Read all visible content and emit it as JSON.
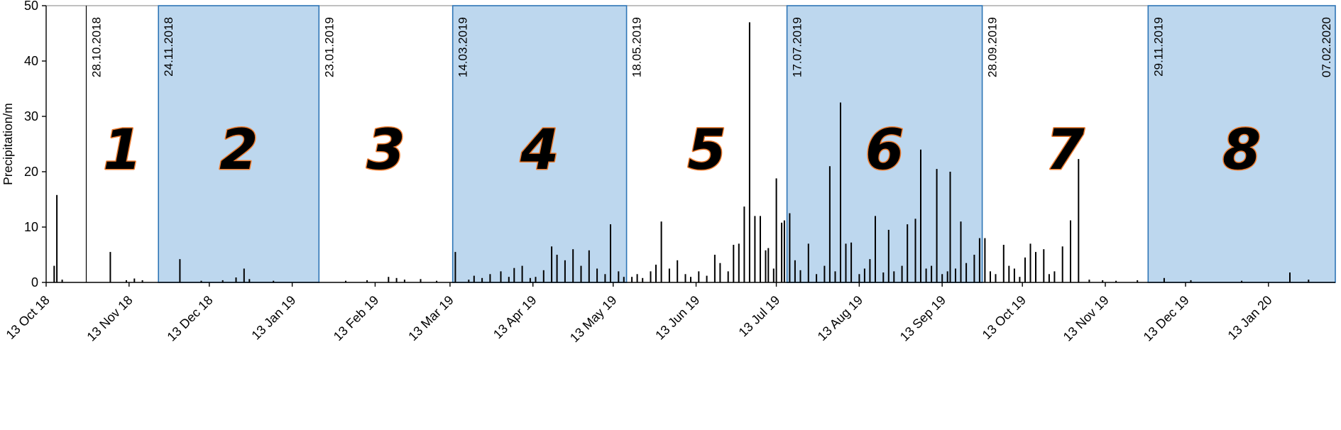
{
  "chart_data": {
    "type": "bar",
    "title": "",
    "xlabel": "",
    "ylabel": "Precipitation/m",
    "ylim": [
      0,
      50
    ],
    "yticks": [
      0,
      10,
      20,
      30,
      40,
      50
    ],
    "x_axis_note": "x values are days since 13 Oct 2018; axis spans 13 Oct 2018 to 07 Feb 2020",
    "axis_max_day": 482,
    "grid": "off",
    "legend": "none",
    "xticks": [
      {
        "label": "13 Oct 18",
        "day": 0
      },
      {
        "label": "13 Nov 18",
        "day": 31
      },
      {
        "label": "13 Dec 18",
        "day": 61
      },
      {
        "label": "13 Jan 19",
        "day": 92
      },
      {
        "label": "13 Feb 19",
        "day": 123
      },
      {
        "label": "13 Mar 19",
        "day": 151
      },
      {
        "label": "13 Apr 19",
        "day": 182
      },
      {
        "label": "13 May 19",
        "day": 212
      },
      {
        "label": "13 Jun 19",
        "day": 243
      },
      {
        "label": "13 Jul 19",
        "day": 273
      },
      {
        "label": "13 Aug 19",
        "day": 304
      },
      {
        "label": "13 Sep 19",
        "day": 335
      },
      {
        "label": "13 Oct 19",
        "day": 365
      },
      {
        "label": "13 Nov 19",
        "day": 396
      },
      {
        "label": "13 Dec 19",
        "day": 426
      },
      {
        "label": "13 Jan 20",
        "day": 457
      }
    ],
    "boundaries": [
      {
        "label": "28.10.2018",
        "day": 15
      },
      {
        "label": "24.11.2018",
        "day": 42
      },
      {
        "label": "23.01.2019",
        "day": 102
      },
      {
        "label": "14.03.2019",
        "day": 152
      },
      {
        "label": "18.05.2019",
        "day": 217
      },
      {
        "label": "17.07.2019",
        "day": 277
      },
      {
        "label": "28.09.2019",
        "day": 350
      },
      {
        "label": "29.11.2019",
        "day": 412
      },
      {
        "label": "07.02.2020",
        "day": 482
      }
    ],
    "periods": [
      {
        "number": "1",
        "start_day": 15,
        "end_day": 42,
        "shaded": false
      },
      {
        "number": "2",
        "start_day": 42,
        "end_day": 102,
        "shaded": true
      },
      {
        "number": "3",
        "start_day": 102,
        "end_day": 152,
        "shaded": false
      },
      {
        "number": "4",
        "start_day": 152,
        "end_day": 217,
        "shaded": true
      },
      {
        "number": "5",
        "start_day": 217,
        "end_day": 277,
        "shaded": false
      },
      {
        "number": "6",
        "start_day": 277,
        "end_day": 350,
        "shaded": true
      },
      {
        "number": "7",
        "start_day": 350,
        "end_day": 412,
        "shaded": false
      },
      {
        "number": "8",
        "start_day": 412,
        "end_day": 482,
        "shaded": true
      }
    ],
    "bars": [
      [
        3,
        3.0
      ],
      [
        4,
        15.8
      ],
      [
        6,
        0.5
      ],
      [
        24,
        5.5
      ],
      [
        30,
        0.4
      ],
      [
        33,
        0.7
      ],
      [
        36,
        0.4
      ],
      [
        50,
        4.2
      ],
      [
        58,
        0.3
      ],
      [
        66,
        0.4
      ],
      [
        71,
        0.9
      ],
      [
        74,
        2.5
      ],
      [
        76,
        0.6
      ],
      [
        85,
        0.3
      ],
      [
        112,
        0.3
      ],
      [
        120,
        0.4
      ],
      [
        128,
        1.0
      ],
      [
        131,
        0.8
      ],
      [
        134,
        0.5
      ],
      [
        140,
        0.6
      ],
      [
        146,
        0.3
      ],
      [
        153,
        5.5
      ],
      [
        158,
        0.5
      ],
      [
        160,
        1.2
      ],
      [
        163,
        0.8
      ],
      [
        166,
        1.5
      ],
      [
        170,
        2.0
      ],
      [
        173,
        1.0
      ],
      [
        175,
        2.6
      ],
      [
        178,
        3.0
      ],
      [
        181,
        0.8
      ],
      [
        183,
        1.0
      ],
      [
        186,
        2.2
      ],
      [
        189,
        6.5
      ],
      [
        191,
        5.0
      ],
      [
        194,
        4.0
      ],
      [
        197,
        6.0
      ],
      [
        200,
        3.0
      ],
      [
        203,
        5.8
      ],
      [
        206,
        2.5
      ],
      [
        209,
        1.5
      ],
      [
        211,
        10.5
      ],
      [
        214,
        2.0
      ],
      [
        216,
        1.0
      ],
      [
        219,
        1.0
      ],
      [
        221,
        1.5
      ],
      [
        223,
        0.8
      ],
      [
        226,
        2.0
      ],
      [
        228,
        3.2
      ],
      [
        230,
        11.0
      ],
      [
        233,
        2.5
      ],
      [
        236,
        4.0
      ],
      [
        239,
        1.5
      ],
      [
        241,
        1.0
      ],
      [
        244,
        2.0
      ],
      [
        247,
        1.2
      ],
      [
        250,
        5.0
      ],
      [
        252,
        3.5
      ],
      [
        255,
        2.0
      ],
      [
        257,
        6.8
      ],
      [
        259,
        7.0
      ],
      [
        261,
        13.7
      ],
      [
        263,
        47.0
      ],
      [
        265,
        12.0
      ],
      [
        267,
        12.0
      ],
      [
        269,
        5.8
      ],
      [
        270,
        6.2
      ],
      [
        272,
        2.5
      ],
      [
        273,
        18.8
      ],
      [
        275,
        10.8
      ],
      [
        276,
        11.2
      ],
      [
        278,
        12.5
      ],
      [
        280,
        4.0
      ],
      [
        282,
        2.2
      ],
      [
        285,
        7.0
      ],
      [
        288,
        1.5
      ],
      [
        291,
        3.0
      ],
      [
        293,
        21.0
      ],
      [
        295,
        2.0
      ],
      [
        297,
        32.5
      ],
      [
        299,
        7.0
      ],
      [
        301,
        7.2
      ],
      [
        304,
        1.5
      ],
      [
        306,
        2.5
      ],
      [
        308,
        4.2
      ],
      [
        310,
        12.0
      ],
      [
        313,
        1.8
      ],
      [
        315,
        9.5
      ],
      [
        317,
        2.0
      ],
      [
        320,
        3.0
      ],
      [
        322,
        10.5
      ],
      [
        325,
        11.5
      ],
      [
        327,
        24.0
      ],
      [
        329,
        2.5
      ],
      [
        331,
        3.0
      ],
      [
        333,
        20.5
      ],
      [
        335,
        1.5
      ],
      [
        337,
        2.0
      ],
      [
        338,
        20.0
      ],
      [
        340,
        2.5
      ],
      [
        342,
        11.0
      ],
      [
        344,
        3.5
      ],
      [
        347,
        5.0
      ],
      [
        349,
        8.0
      ],
      [
        351,
        8.0
      ],
      [
        353,
        2.0
      ],
      [
        355,
        1.5
      ],
      [
        358,
        6.8
      ],
      [
        360,
        3.0
      ],
      [
        362,
        2.5
      ],
      [
        364,
        1.0
      ],
      [
        366,
        4.5
      ],
      [
        368,
        7.0
      ],
      [
        370,
        5.5
      ],
      [
        373,
        6.0
      ],
      [
        375,
        1.5
      ],
      [
        377,
        2.0
      ],
      [
        380,
        6.5
      ],
      [
        383,
        11.2
      ],
      [
        386,
        22.3
      ],
      [
        390,
        0.5
      ],
      [
        395,
        0.4
      ],
      [
        400,
        0.3
      ],
      [
        408,
        0.4
      ],
      [
        418,
        0.8
      ],
      [
        428,
        0.4
      ],
      [
        447,
        0.3
      ],
      [
        465,
        1.8
      ],
      [
        472,
        0.5
      ]
    ],
    "colors": {
      "bar": "#000000",
      "shaded_fill": "#BDD7EE",
      "shaded_border": "#2E75B6",
      "boundary_line": "#000000",
      "axis": "#000000",
      "plot_border": "#808080",
      "period_number_fill": "#F9BE8F",
      "period_number_stroke": "#ED7D31"
    }
  }
}
